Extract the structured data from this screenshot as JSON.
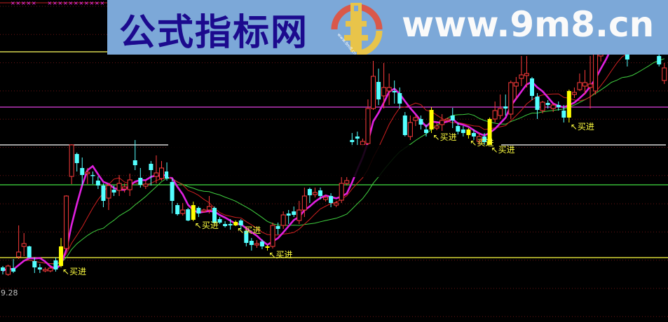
{
  "watermark": {
    "title": "公式指标网",
    "url": "www.9m8.cn",
    "logo_text": "www.9m8.cn",
    "bg_color": "#7ca8d8",
    "title_color": "#1c0a8e"
  },
  "chart_data": {
    "type": "candlestick",
    "ylim": [
      8.88,
      13.48
    ],
    "price_label": "9.28",
    "grid": true,
    "colors": {
      "up": "#ff3c3c",
      "down": "#54ffff",
      "signal": "#ffff00",
      "ma5": "#e020e0",
      "ma10": "#d02020",
      "ma20": "#40d040"
    },
    "moving_averages": [
      5,
      10,
      20
    ],
    "signal_label": "买进",
    "signal_arrow": "↖",
    "signals": [
      11,
      36,
      44,
      50,
      81,
      88,
      92,
      107
    ],
    "levels": [
      {
        "price": 12.74,
        "color": "#ffff60"
      },
      {
        "price": 11.95,
        "color": "#e040e0"
      },
      {
        "price": 11.41,
        "color": "#ffffff"
      },
      {
        "price": 10.84,
        "color": "#40e040"
      },
      {
        "price": 9.8,
        "color": "#ffff40"
      }
    ],
    "candles": [
      [
        9.66,
        9.61,
        9.68,
        9.56
      ],
      [
        9.56,
        9.68,
        9.7,
        9.54
      ],
      [
        9.65,
        9.6,
        9.78,
        9.58
      ],
      [
        9.81,
        9.88,
        10.26,
        9.78
      ],
      [
        9.96,
        10.0,
        10.15,
        9.82
      ],
      [
        9.96,
        9.8,
        9.97,
        9.79
      ],
      [
        9.75,
        9.66,
        9.8,
        9.58
      ],
      [
        9.66,
        9.63,
        9.71,
        9.58
      ],
      [
        9.61,
        9.63,
        9.66,
        9.59
      ],
      [
        9.61,
        9.65,
        9.67,
        9.59
      ],
      [
        9.76,
        9.63,
        9.8,
        9.6
      ],
      [
        9.68,
        9.96,
        10.08,
        9.66
      ],
      [
        9.93,
        10.68,
        10.69,
        9.9
      ],
      [
        10.96,
        11.41,
        11.42,
        10.85
      ],
      [
        11.28,
        11.15,
        11.3,
        11.03
      ],
      [
        11.08,
        10.98,
        11.23,
        10.83
      ],
      [
        11.0,
        11.02,
        11.08,
        10.85
      ],
      [
        10.98,
        10.97,
        11.03,
        10.85
      ],
      [
        10.9,
        10.83,
        10.96,
        10.78
      ],
      [
        10.83,
        10.61,
        10.86,
        10.52
      ],
      [
        10.65,
        10.83,
        10.86,
        10.48
      ],
      [
        10.77,
        10.73,
        10.83,
        10.68
      ],
      [
        10.76,
        10.86,
        10.98,
        10.68
      ],
      [
        10.78,
        10.81,
        10.86,
        10.73
      ],
      [
        10.77,
        10.91,
        11.0,
        10.68
      ],
      [
        11.19,
        11.12,
        11.48,
        11.05
      ],
      [
        10.94,
        10.84,
        11.08,
        10.8
      ],
      [
        10.82,
        10.85,
        10.9,
        10.78
      ],
      [
        11.14,
        11.05,
        11.18,
        10.83
      ],
      [
        10.96,
        11.01,
        11.26,
        10.86
      ],
      [
        10.93,
        11.08,
        11.18,
        10.9
      ],
      [
        11.03,
        10.93,
        11.16,
        10.9
      ],
      [
        10.88,
        10.61,
        10.93,
        10.43
      ],
      [
        10.55,
        10.42,
        10.58,
        10.4
      ],
      [
        10.43,
        10.48,
        10.58,
        10.4
      ],
      [
        10.49,
        10.33,
        10.51,
        10.32
      ],
      [
        10.34,
        10.55,
        10.6,
        10.32
      ],
      [
        10.51,
        10.43,
        10.53,
        10.38
      ],
      [
        10.46,
        10.48,
        10.5,
        10.44
      ],
      [
        10.48,
        10.53,
        10.68,
        10.43
      ],
      [
        10.51,
        10.3,
        10.53,
        10.26
      ],
      [
        10.35,
        10.3,
        10.38,
        10.28
      ],
      [
        10.28,
        10.25,
        10.32,
        10.23
      ],
      [
        10.28,
        10.26,
        10.35,
        10.2
      ],
      [
        10.26,
        10.31,
        10.33,
        10.25
      ],
      [
        10.33,
        10.26,
        10.35,
        10.2
      ],
      [
        10.18,
        10.01,
        10.2,
        9.96
      ],
      [
        10.04,
        9.98,
        10.08,
        9.9
      ],
      [
        9.98,
        10.0,
        10.05,
        9.94
      ],
      [
        10.03,
        9.96,
        10.06,
        9.92
      ],
      [
        9.94,
        9.96,
        9.98,
        9.9
      ],
      [
        9.96,
        10.26,
        10.3,
        9.93
      ],
      [
        10.25,
        10.21,
        10.3,
        10.13
      ],
      [
        10.26,
        10.41,
        10.46,
        10.21
      ],
      [
        10.43,
        10.4,
        10.48,
        10.28
      ],
      [
        10.46,
        10.41,
        10.53,
        10.38
      ],
      [
        10.33,
        10.48,
        10.61,
        10.28
      ],
      [
        10.48,
        10.68,
        10.8,
        10.38
      ],
      [
        10.78,
        10.69,
        10.8,
        10.58
      ],
      [
        10.7,
        10.73,
        10.8,
        10.66
      ],
      [
        10.76,
        10.68,
        10.8,
        10.63
      ],
      [
        10.63,
        10.66,
        10.69,
        10.6
      ],
      [
        10.68,
        10.58,
        10.72,
        10.52
      ],
      [
        10.55,
        10.58,
        10.61,
        10.52
      ],
      [
        10.62,
        10.86,
        10.95,
        10.58
      ],
      [
        10.86,
        10.9,
        10.95,
        10.83
      ],
      [
        11.48,
        11.45,
        11.58,
        11.38
      ],
      [
        11.53,
        11.5,
        11.6,
        11.4
      ],
      [
        11.41,
        11.46,
        11.5,
        11.38
      ],
      [
        11.43,
        11.93,
        12.06,
        11.4
      ],
      [
        11.93,
        12.39,
        12.61,
        11.91
      ],
      [
        12.31,
        12.06,
        12.5,
        11.98
      ],
      [
        12.11,
        12.23,
        12.58,
        11.93
      ],
      [
        12.18,
        12.23,
        12.43,
        11.98
      ],
      [
        12.18,
        12.16,
        12.33,
        12.0
      ],
      [
        12.15,
        12.0,
        12.23,
        11.93
      ],
      [
        11.83,
        11.55,
        11.88,
        11.53
      ],
      [
        11.53,
        11.73,
        11.83,
        11.48
      ],
      [
        11.76,
        11.8,
        11.83,
        11.68
      ],
      [
        11.78,
        11.7,
        11.83,
        11.63
      ],
      [
        11.63,
        11.58,
        11.7,
        11.53
      ],
      [
        11.63,
        11.91,
        11.95,
        11.58
      ],
      [
        11.65,
        11.68,
        11.72,
        11.62
      ],
      [
        11.7,
        11.76,
        11.85,
        11.61
      ],
      [
        11.76,
        11.78,
        11.8,
        11.73
      ],
      [
        11.83,
        11.76,
        11.94,
        11.65
      ],
      [
        11.68,
        11.6,
        11.73,
        11.56
      ],
      [
        11.63,
        11.58,
        11.68,
        11.53
      ],
      [
        11.55,
        11.63,
        11.65,
        11.5
      ],
      [
        11.58,
        11.53,
        11.63,
        11.48
      ],
      [
        11.46,
        11.53,
        11.58,
        11.41
      ],
      [
        11.53,
        11.45,
        11.58,
        11.41
      ],
      [
        11.41,
        11.78,
        11.8,
        11.4
      ],
      [
        11.78,
        11.9,
        12.03,
        11.73
      ],
      [
        11.83,
        11.93,
        12.13,
        11.78
      ],
      [
        11.96,
        11.93,
        12.13,
        11.83
      ],
      [
        11.85,
        12.3,
        12.33,
        11.78
      ],
      [
        12.25,
        12.3,
        12.38,
        12.06
      ],
      [
        12.36,
        12.41,
        12.68,
        12.25
      ],
      [
        12.4,
        12.43,
        12.68,
        12.23
      ],
      [
        12.36,
        12.11,
        12.38,
        12.05
      ],
      [
        12.1,
        11.91,
        12.15,
        11.78
      ],
      [
        11.9,
        12.02,
        12.04,
        11.86
      ],
      [
        12.01,
        11.98,
        12.05,
        11.93
      ],
      [
        11.93,
        11.98,
        12.0,
        11.88
      ],
      [
        11.98,
        11.95,
        12.03,
        11.9
      ],
      [
        11.9,
        11.8,
        11.98,
        11.73
      ],
      [
        11.8,
        12.18,
        12.2,
        11.73
      ],
      [
        12.13,
        12.16,
        12.23,
        12.08
      ],
      [
        12.2,
        12.3,
        12.43,
        12.18
      ],
      [
        12.25,
        12.3,
        12.48,
        12.13
      ],
      [
        12.23,
        12.28,
        12.68,
        11.93
      ],
      [
        12.18,
        12.73,
        12.78,
        12.13
      ],
      [
        12.68,
        12.88,
        12.98,
        12.6
      ],
      [
        12.78,
        12.98,
        13.05,
        12.7
      ],
      [
        12.88,
        13.08,
        13.15,
        12.8
      ],
      [
        13.03,
        12.88,
        13.1,
        12.83
      ],
      [
        12.93,
        13.08,
        13.12,
        12.88
      ],
      [
        12.73,
        12.63,
        12.78,
        12.53
      ],
      [
        12.73,
        12.88,
        12.95,
        12.7
      ],
      [
        12.78,
        12.93,
        13.0,
        12.74
      ],
      [
        12.93,
        12.78,
        12.98,
        12.72
      ],
      [
        12.78,
        12.93,
        12.98,
        12.75
      ],
      [
        12.83,
        12.98,
        13.05,
        12.8
      ],
      [
        12.68,
        12.56,
        12.73,
        12.53
      ],
      [
        12.33,
        12.51,
        12.58,
        12.28
      ]
    ]
  }
}
